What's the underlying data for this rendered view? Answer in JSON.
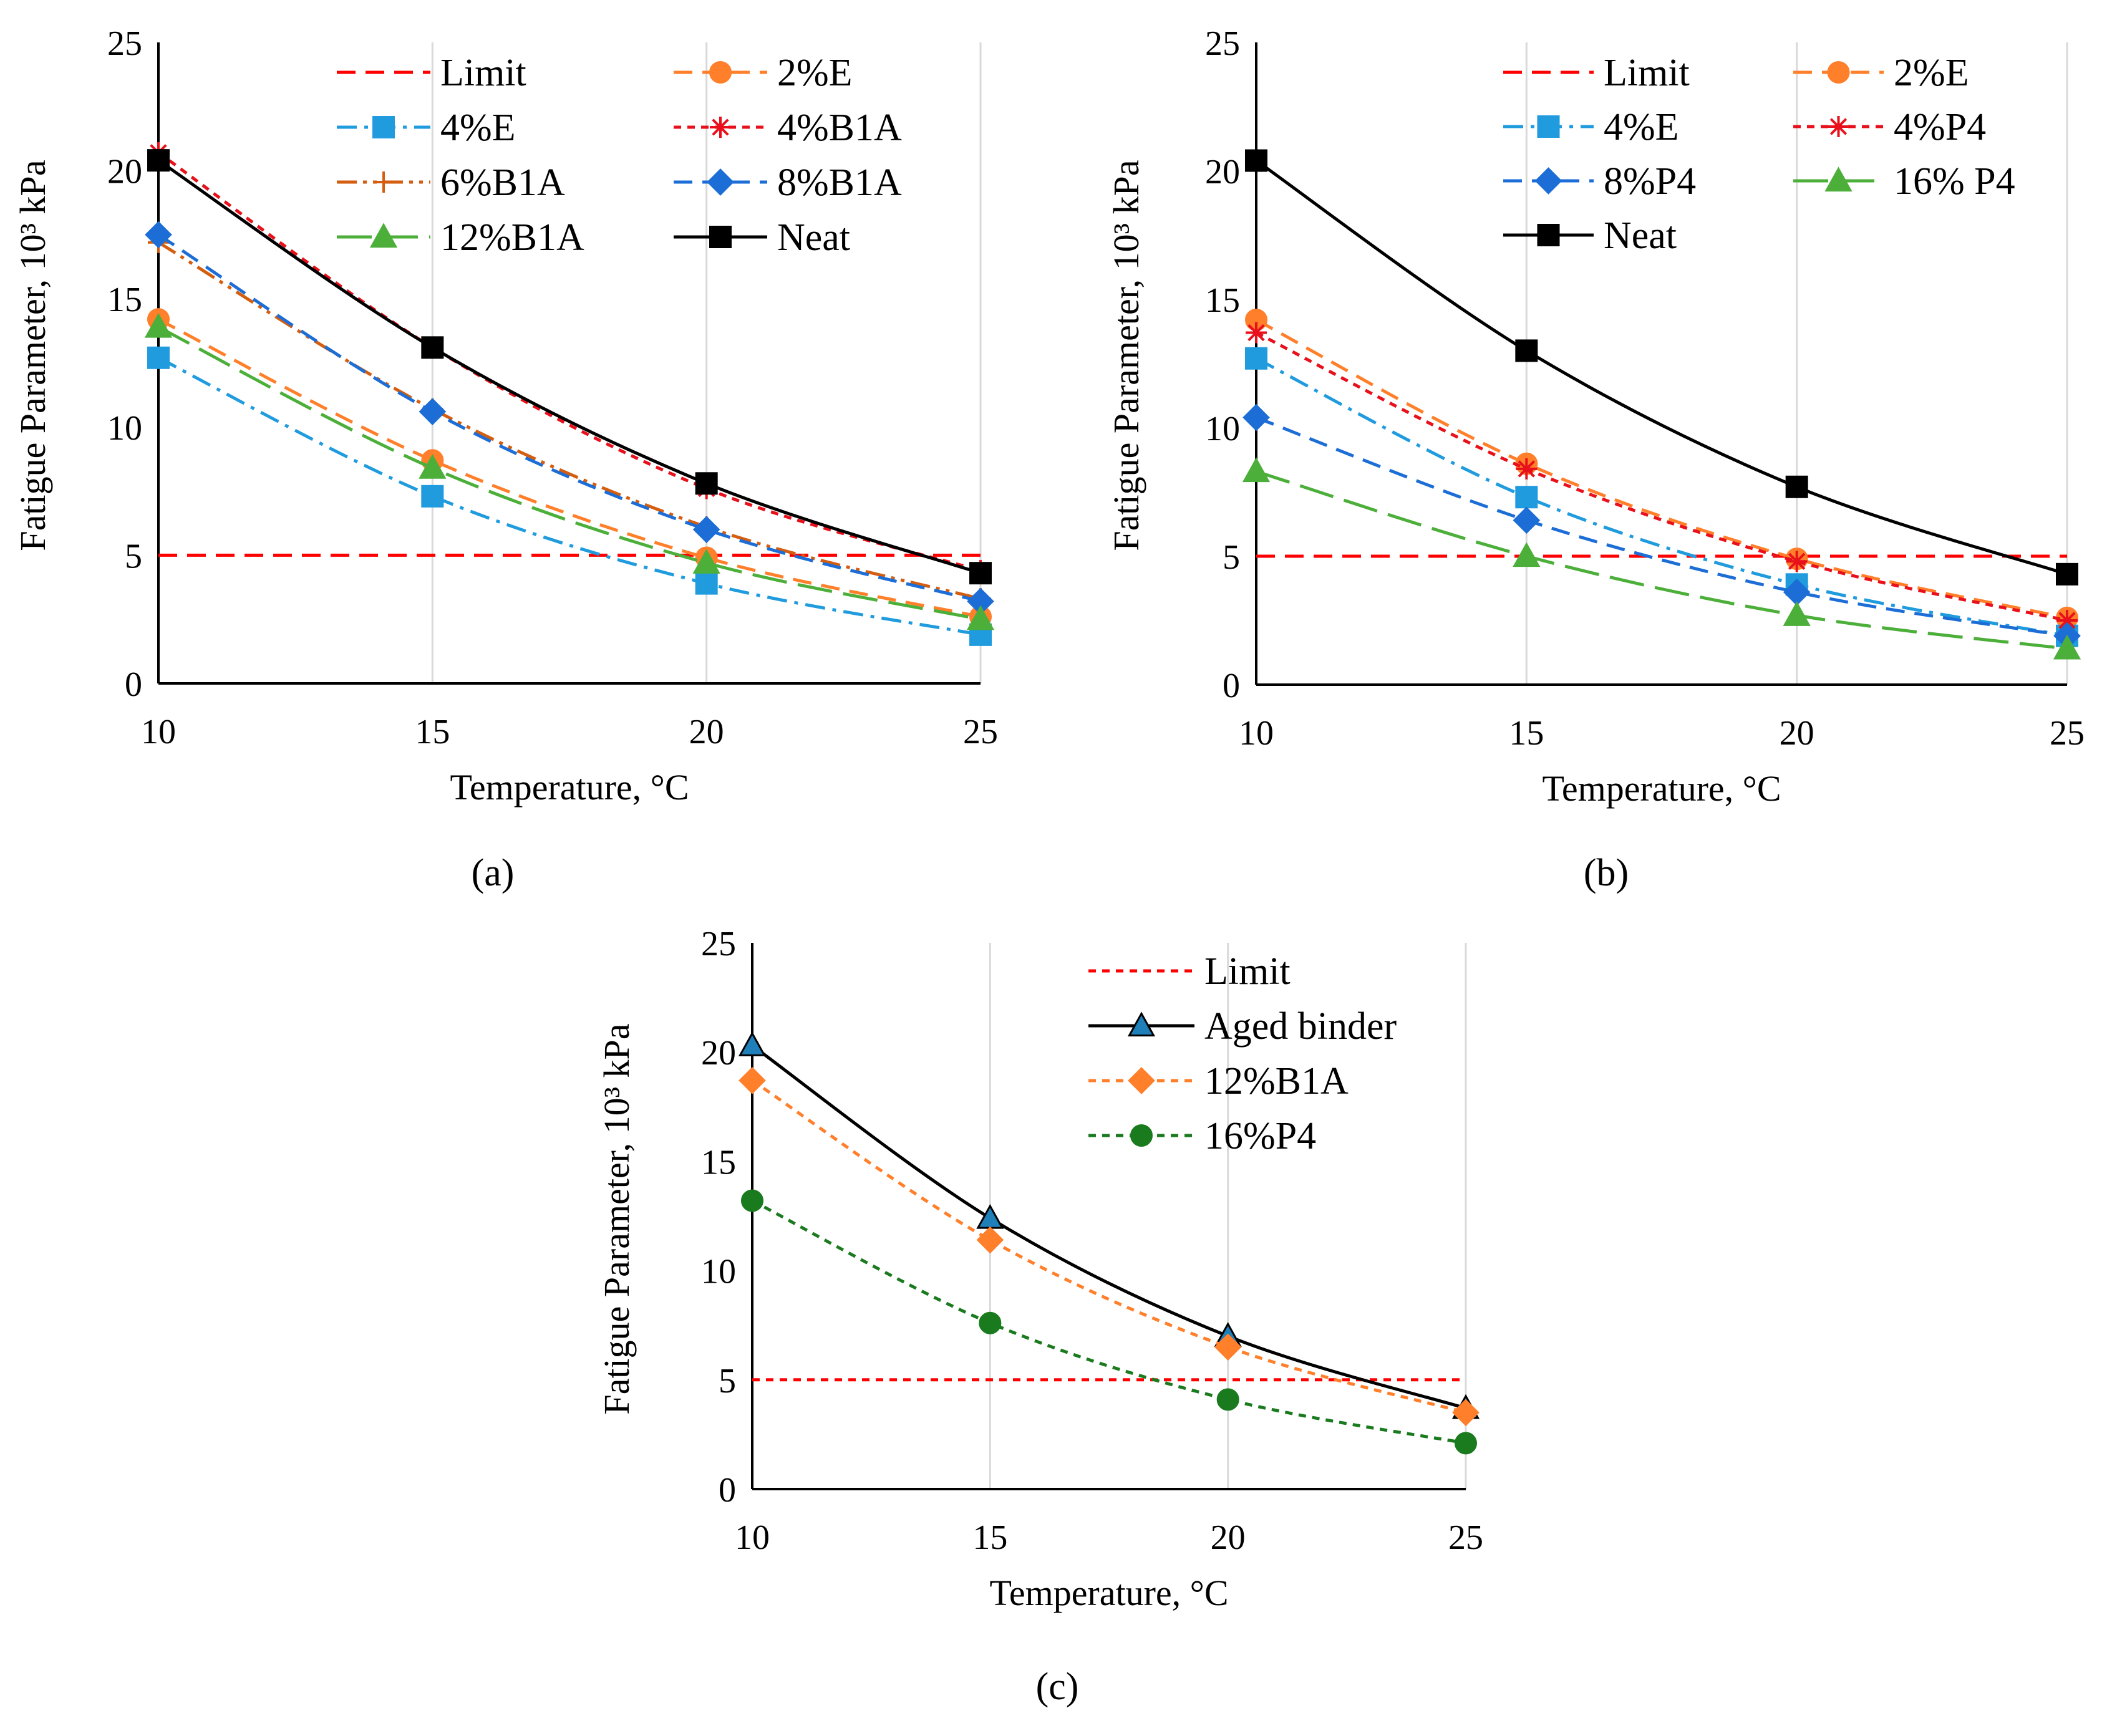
{
  "chart_data": [
    {
      "type": "line",
      "panel_label": "(a)",
      "xlabel": "Temperature, °C",
      "ylabel": "Fatigue Parameter, 10³ kPa",
      "x": [
        10,
        15,
        20,
        25
      ],
      "xlim": [
        10,
        25
      ],
      "ylim": [
        0,
        25
      ],
      "xticks": [
        "10",
        "15",
        "20",
        "25"
      ],
      "yticks": [
        "0",
        "5",
        "10",
        "15",
        "20",
        "25"
      ],
      "grid": "vertical",
      "legend_position": "top-right",
      "series": [
        {
          "name": "Limit",
          "values": [
            5,
            5,
            5,
            5
          ],
          "color": "#ff0000",
          "dash": "dash",
          "marker": "none"
        },
        {
          "name": "2%E",
          "values": [
            14.2,
            8.7,
            4.9,
            2.6
          ],
          "color": "#ff7f2a",
          "dash": "dash",
          "marker": "circle"
        },
        {
          "name": "4%E",
          "values": [
            12.7,
            7.3,
            3.9,
            1.9
          ],
          "color": "#1f9bde",
          "dash": "dashdot",
          "marker": "square"
        },
        {
          "name": "4%B1A",
          "values": [
            20.7,
            13.1,
            7.6,
            4.4
          ],
          "color": "#e8101a",
          "dash": "dot",
          "marker": "star"
        },
        {
          "name": "6%B1A",
          "values": [
            17.2,
            10.7,
            6.1,
            3.3
          ],
          "color": "#d45d10",
          "dash": "dashdotdot",
          "marker": "plus"
        },
        {
          "name": "8%B1A",
          "values": [
            17.5,
            10.6,
            6.0,
            3.2
          ],
          "color": "#1c6ed6",
          "dash": "dash",
          "marker": "diamond"
        },
        {
          "name": "12%B1A",
          "values": [
            13.9,
            8.4,
            4.7,
            2.5
          ],
          "color": "#4caf3a",
          "dash": "longdash",
          "marker": "triangle"
        },
        {
          "name": "Neat",
          "values": [
            20.4,
            13.1,
            7.8,
            4.3
          ],
          "color": "#000000",
          "dash": "solid",
          "marker": "square"
        }
      ]
    },
    {
      "type": "line",
      "panel_label": "(b)",
      "xlabel": "Temperature, °C",
      "ylabel": "Fatigue Parameter, 10³ kPa",
      "x": [
        10,
        15,
        20,
        25
      ],
      "xlim": [
        10,
        25
      ],
      "ylim": [
        0,
        25
      ],
      "xticks": [
        "10",
        "15",
        "20",
        "25"
      ],
      "yticks": [
        "0",
        "5",
        "10",
        "15",
        "20",
        "25"
      ],
      "grid": "vertical",
      "legend_position": "top-right",
      "series": [
        {
          "name": "Limit",
          "values": [
            5,
            5,
            5,
            5
          ],
          "color": "#ff0000",
          "dash": "dash",
          "marker": "none"
        },
        {
          "name": "2%E",
          "values": [
            14.2,
            8.6,
            4.9,
            2.6
          ],
          "color": "#ff7f2a",
          "dash": "dash",
          "marker": "circle"
        },
        {
          "name": "4%E",
          "values": [
            12.7,
            7.3,
            3.9,
            1.9
          ],
          "color": "#1f9bde",
          "dash": "dashdot",
          "marker": "square"
        },
        {
          "name": "4%P4",
          "values": [
            13.7,
            8.4,
            4.8,
            2.5
          ],
          "color": "#e8101a",
          "dash": "dot",
          "marker": "star"
        },
        {
          "name": "8%P4",
          "values": [
            10.4,
            6.4,
            3.6,
            1.9
          ],
          "color": "#1c6ed6",
          "dash": "dash",
          "marker": "diamond"
        },
        {
          "name": "16% P4",
          "values": [
            8.3,
            5.0,
            2.7,
            1.4
          ],
          "color": "#4caf3a",
          "dash": "longdash",
          "marker": "triangle"
        },
        {
          "name": "Neat",
          "values": [
            20.4,
            13.0,
            7.7,
            4.3
          ],
          "color": "#000000",
          "dash": "solid",
          "marker": "square"
        }
      ]
    },
    {
      "type": "line",
      "panel_label": "(c)",
      "xlabel": "Temperature, °C",
      "ylabel": "Fatigue Parameter, 10³ kPa",
      "x": [
        10,
        15,
        20,
        25
      ],
      "xlim": [
        10,
        25
      ],
      "ylim": [
        0,
        25
      ],
      "xticks": [
        "10",
        "15",
        "20",
        "25"
      ],
      "yticks": [
        "0",
        "5",
        "10",
        "15",
        "20",
        "25"
      ],
      "grid": "vertical",
      "legend_position": "top-right",
      "series": [
        {
          "name": "Limit",
          "values": [
            5,
            5,
            5,
            5
          ],
          "color": "#ff0000",
          "dash": "dot",
          "marker": "none"
        },
        {
          "name": "Aged binder",
          "values": [
            20.3,
            12.4,
            7.0,
            3.7
          ],
          "color": "#000000",
          "dash": "solid",
          "marker": "triangle",
          "marker_fill": "#1f7fb8"
        },
        {
          "name": "12%B1A",
          "values": [
            18.7,
            11.4,
            6.5,
            3.5
          ],
          "color": "#ff7f2a",
          "dash": "dot",
          "marker": "diamond"
        },
        {
          "name": "16%P4",
          "values": [
            13.2,
            7.6,
            4.1,
            2.1
          ],
          "color": "#1a7a1e",
          "dash": "dot",
          "marker": "circle"
        }
      ]
    }
  ]
}
